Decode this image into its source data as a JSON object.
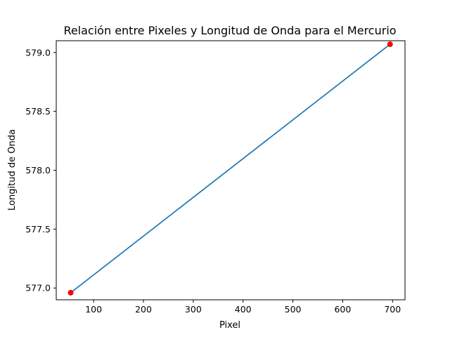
{
  "chart_data": {
    "type": "scatter",
    "title": "Relación entre Pixeles y Longitud de Onda para el Mercurio",
    "xlabel": "Pixel",
    "ylabel": "Longitud de Onda",
    "xlim": [
      25,
      725
    ],
    "ylim": [
      576.9,
      579.1
    ],
    "xticks": [
      100,
      200,
      300,
      400,
      500,
      600,
      700
    ],
    "yticks": [
      577.0,
      577.5,
      578.0,
      578.5,
      579.0
    ],
    "ytick_labels": [
      "577.0",
      "577.5",
      "578.0",
      "578.5",
      "579.0"
    ],
    "grid": false,
    "series": [
      {
        "kind": "scatter",
        "x": [
          54,
          695
        ],
        "y": [
          576.96,
          579.07
        ],
        "color": "#ff0000"
      },
      {
        "kind": "line",
        "x": [
          54,
          695
        ],
        "y": [
          576.96,
          579.07
        ],
        "color": "#1f77b4"
      }
    ]
  }
}
